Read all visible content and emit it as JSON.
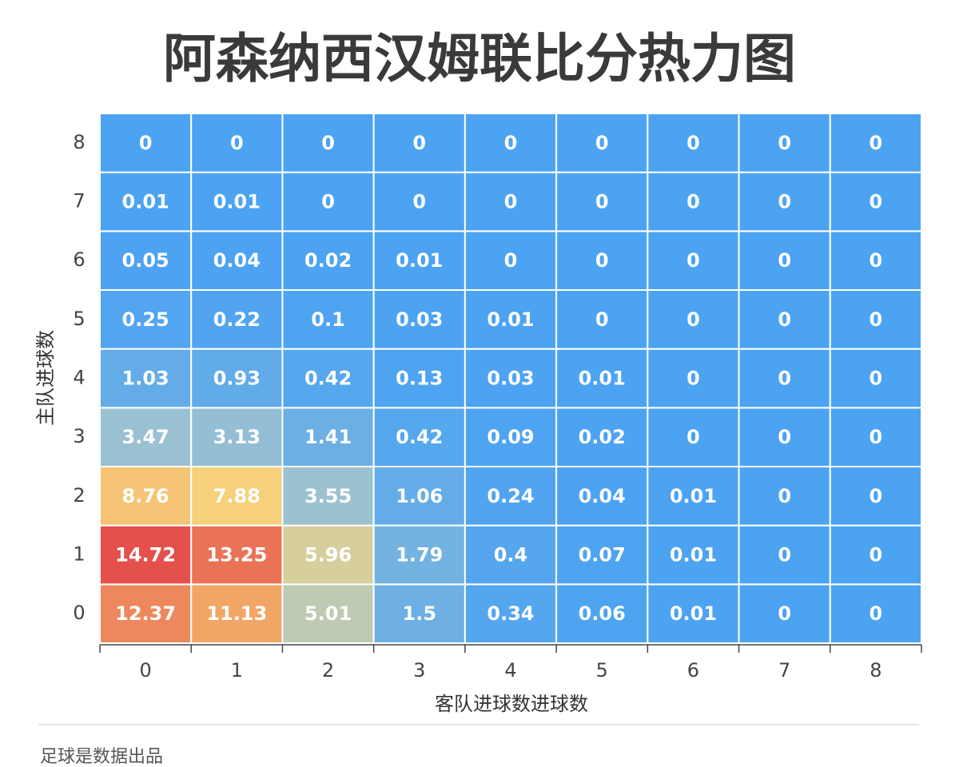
{
  "chart_data": {
    "type": "heatmap",
    "title": "阿森纳西汉姆联比分热力图",
    "x_label": "客队进球数进球数",
    "y_label": "主队进球数",
    "x": [
      "0",
      "1",
      "2",
      "3",
      "4",
      "5",
      "6",
      "7",
      "8"
    ],
    "y": [
      "0",
      "1",
      "2",
      "3",
      "4",
      "5",
      "6",
      "7",
      "8"
    ],
    "values": [
      [
        12.37,
        11.13,
        5.01,
        1.5,
        0.34,
        0.06,
        0.01,
        0,
        0
      ],
      [
        14.72,
        13.25,
        5.96,
        1.79,
        0.4,
        0.07,
        0.01,
        0,
        0
      ],
      [
        8.76,
        7.88,
        3.55,
        1.06,
        0.24,
        0.04,
        0.01,
        0,
        0
      ],
      [
        3.47,
        3.13,
        1.41,
        0.42,
        0.09,
        0.02,
        0,
        0,
        0
      ],
      [
        1.03,
        0.93,
        0.42,
        0.13,
        0.03,
        0.01,
        0,
        0,
        0
      ],
      [
        0.25,
        0.22,
        0.1,
        0.03,
        0.01,
        0,
        0,
        0,
        0
      ],
      [
        0.05,
        0.04,
        0.02,
        0.01,
        0,
        0,
        0,
        0,
        0
      ],
      [
        0.01,
        0.01,
        0,
        0,
        0,
        0,
        0,
        0,
        0
      ],
      [
        0,
        0,
        0,
        0,
        0,
        0,
        0,
        0,
        0
      ]
    ],
    "colors": [
      "#4ca3f2",
      "#9fc3cf",
      "#f7d77e",
      "#f2a867",
      "#e5504c"
    ],
    "source": "足球是数据出品"
  }
}
